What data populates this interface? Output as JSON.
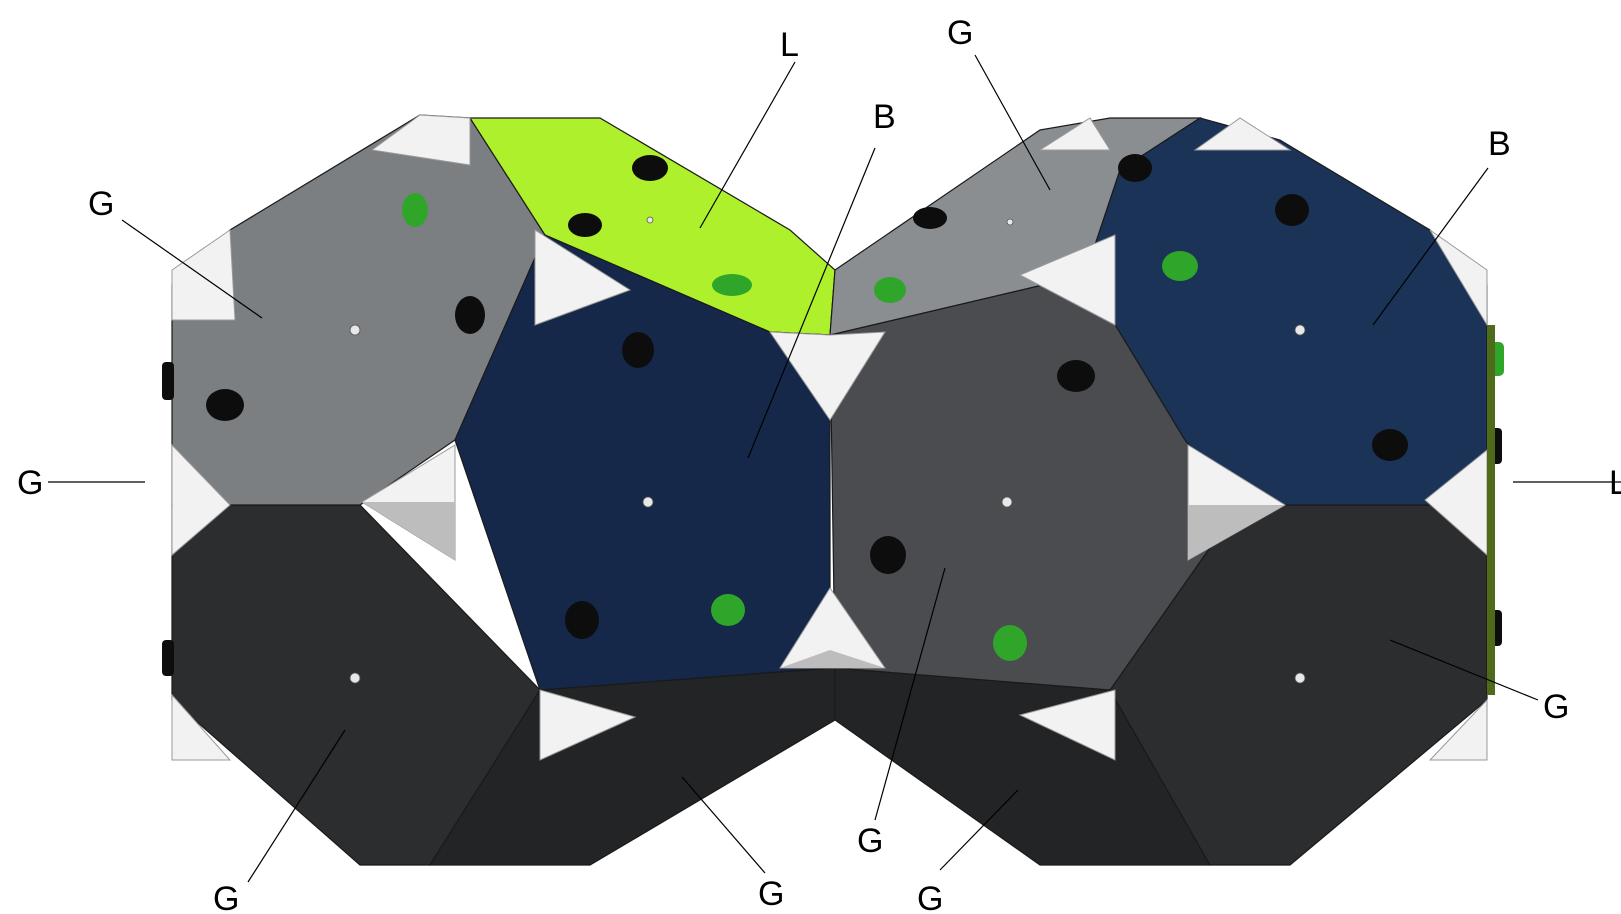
{
  "colors": {
    "grey_light": "#7b7f82",
    "grey_mid": "#4a4c4f",
    "grey_dark": "#2c2d2f",
    "grey_darker": "#222325",
    "blue": "#15284a",
    "lime": "#aef02c",
    "hold_black": "#0d0d0d",
    "hold_green": "#2fa52a",
    "bracket": "#f2f2f2"
  },
  "callouts": [
    {
      "id": "lime-top",
      "text": "L"
    },
    {
      "id": "blue-center",
      "text": "B"
    },
    {
      "id": "grey-top-right",
      "text": "G"
    },
    {
      "id": "blue-right",
      "text": "B"
    },
    {
      "id": "grey-upper-left",
      "text": "G"
    },
    {
      "id": "grey-left-edge",
      "text": "G"
    },
    {
      "id": "right-edge",
      "text": "L"
    },
    {
      "id": "grey-lower-right",
      "text": "G"
    },
    {
      "id": "grey-bottom-center",
      "text": "G"
    },
    {
      "id": "grey-bottom-left",
      "text": "G"
    },
    {
      "id": "grey-bottom-mid",
      "text": "G"
    },
    {
      "id": "grey-bottom-right",
      "text": "G"
    }
  ]
}
